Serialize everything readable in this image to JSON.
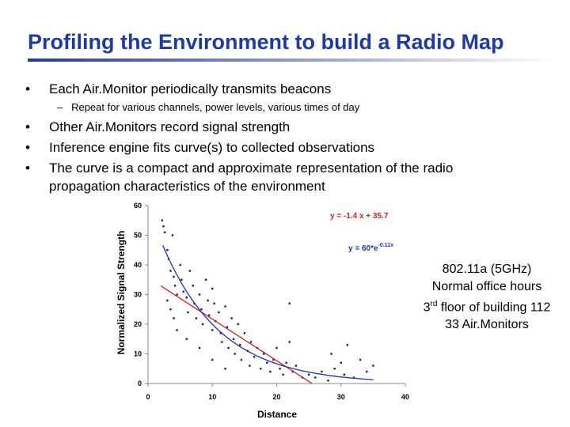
{
  "header": {
    "title": "Profiling the Environment to build a Radio Map"
  },
  "bullets": [
    "Each Air.Monitor periodically transmits beacons",
    "Other Air.Monitors record signal strength",
    "Inference engine fits curve(s) to collected observations",
    "The curve is a compact and approximate representation of the radio propagation characteristics of the environment"
  ],
  "sub_bullets": [
    "Repeat for various channels, power levels, various times of day"
  ],
  "notes": [
    "802.11a (5GHz)",
    "Normal office hours",
    [
      "3",
      "rd",
      " floor of building 112"
    ],
    "33 Air.Monitors"
  ],
  "chart_data": {
    "type": "scatter",
    "xlabel": "Distance",
    "ylabel": "Normalized Signal Strength",
    "xlim": [
      0,
      40
    ],
    "ylim": [
      0,
      60
    ],
    "xticks": [
      0,
      10,
      20,
      30,
      40
    ],
    "yticks": [
      0,
      10,
      20,
      30,
      40,
      50,
      60
    ],
    "grid": false,
    "color": "#1a2060",
    "x": [
      2.2,
      2.4,
      2.6,
      3,
      3.2,
      3.5,
      3.8,
      4,
      4.2,
      4.5,
      3,
      3.5,
      4,
      5,
      5.2,
      5.5,
      6,
      6.2,
      6.5,
      7,
      7.2,
      7.5,
      8,
      8.3,
      8.5,
      9,
      9.3,
      9.5,
      10,
      10.3,
      10.5,
      11,
      11.3,
      11.5,
      12,
      12.3,
      12.5,
      13,
      13.3,
      13.5,
      14,
      14.3,
      14.5,
      15,
      15.5,
      15.8,
      16,
      16.5,
      17,
      17.5,
      18,
      18.5,
      19,
      19.5,
      20,
      20.5,
      21,
      21.5,
      22,
      22.5,
      23,
      24,
      25,
      26,
      27,
      28,
      28.5,
      29,
      30,
      30.5,
      31,
      32,
      33,
      34,
      35,
      4.5,
      6,
      8,
      10,
      22,
      10,
      12
    ],
    "values": [
      55,
      53,
      51,
      45,
      42,
      38,
      50,
      36,
      33,
      30,
      28,
      25,
      22,
      40,
      35,
      31,
      29,
      24,
      38,
      33,
      27,
      22,
      30,
      25,
      20,
      35,
      28,
      23,
      18,
      27,
      21,
      24,
      17,
      14,
      26,
      19,
      12,
      22,
      15,
      10,
      20,
      13,
      8,
      17,
      11,
      6,
      14,
      9,
      12,
      5,
      10,
      7,
      4,
      8,
      12,
      5,
      3,
      7,
      14,
      4,
      6,
      2,
      3,
      2,
      4,
      1,
      10,
      5,
      7,
      3,
      13,
      2,
      8,
      4,
      6,
      18,
      15,
      12,
      32,
      27,
      8,
      5
    ],
    "fits": [
      {
        "kind": "linear",
        "label": "y = -1.4 x + 35.7",
        "slope": -1.4,
        "intercept": 35.7,
        "color": "#d42020",
        "x": [
          2,
          25.5
        ]
      },
      {
        "kind": "exponential",
        "label": "y = 60*e",
        "label_exponent": "-0.11x",
        "coef": 60,
        "rate": -0.11,
        "color": "#2030c0",
        "x": [
          2.3,
          35
        ]
      }
    ]
  }
}
